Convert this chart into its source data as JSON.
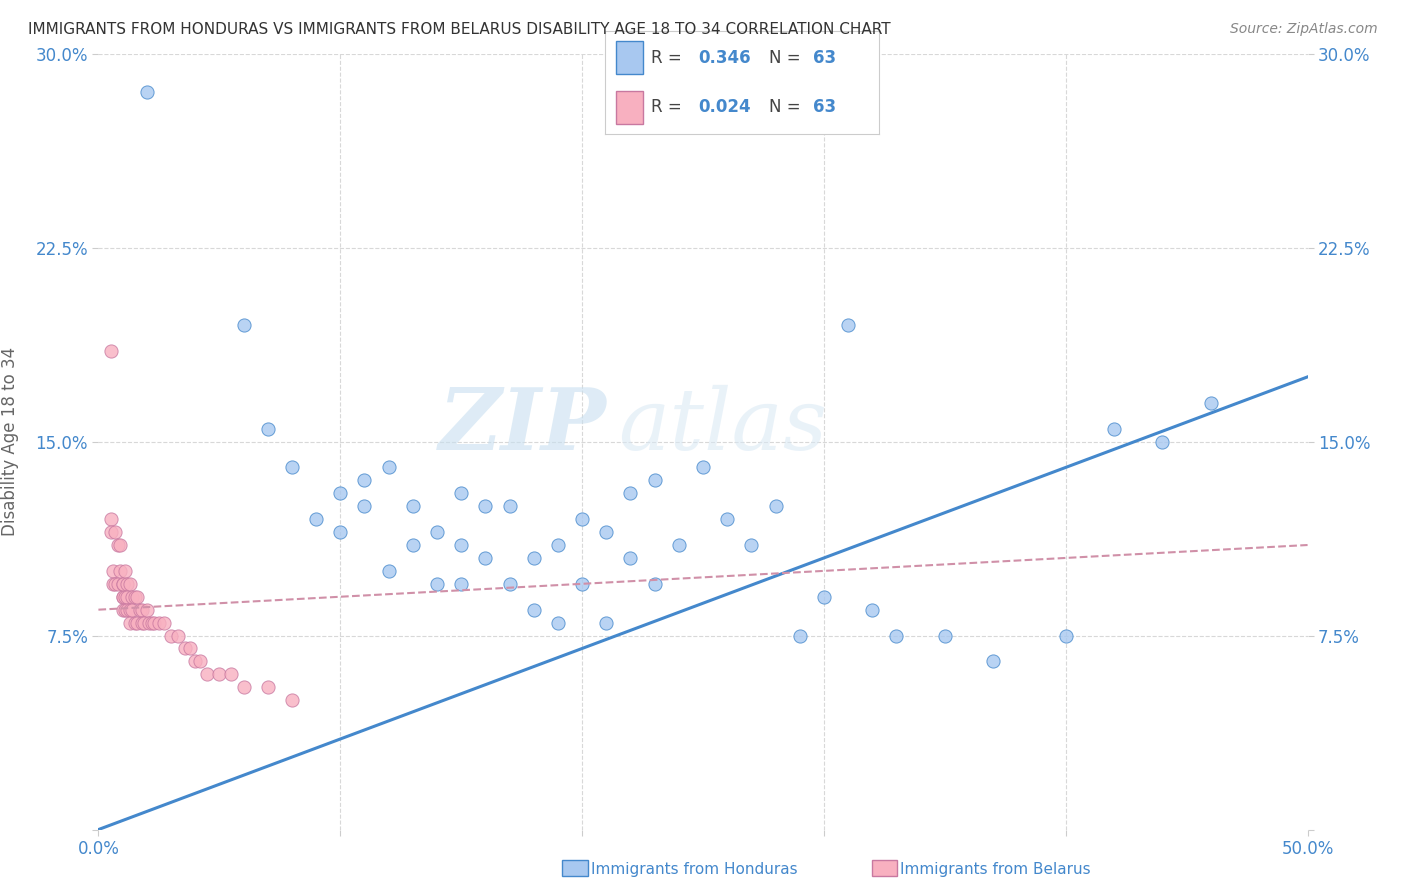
{
  "title": "IMMIGRANTS FROM HONDURAS VS IMMIGRANTS FROM BELARUS DISABILITY AGE 18 TO 34 CORRELATION CHART",
  "source": "Source: ZipAtlas.com",
  "ylabel": "Disability Age 18 to 34",
  "xlim": [
    0.0,
    0.5
  ],
  "ylim": [
    0.0,
    0.3
  ],
  "xticks": [
    0.0,
    0.1,
    0.2,
    0.3,
    0.4,
    0.5
  ],
  "yticks": [
    0.0,
    0.075,
    0.15,
    0.225,
    0.3
  ],
  "ytick_labels": [
    "",
    "7.5%",
    "15.0%",
    "22.5%",
    "30.0%"
  ],
  "color_honduras": "#a8c8f0",
  "color_belarus": "#f8b0c0",
  "color_line_honduras": "#4488cc",
  "color_line_belarus": "#d090a8",
  "color_text_blue": "#4488cc",
  "watermark_zip": "ZIP",
  "watermark_atlas": "atlas",
  "honduras_x": [
    0.02,
    0.06,
    0.07,
    0.08,
    0.09,
    0.1,
    0.1,
    0.11,
    0.11,
    0.12,
    0.12,
    0.13,
    0.13,
    0.14,
    0.14,
    0.15,
    0.15,
    0.15,
    0.16,
    0.16,
    0.17,
    0.17,
    0.18,
    0.18,
    0.19,
    0.19,
    0.2,
    0.2,
    0.21,
    0.21,
    0.22,
    0.22,
    0.23,
    0.23,
    0.24,
    0.25,
    0.26,
    0.27,
    0.28,
    0.29,
    0.3,
    0.31,
    0.32,
    0.33,
    0.35,
    0.37,
    0.4,
    0.42,
    0.44,
    0.46
  ],
  "honduras_y": [
    0.285,
    0.195,
    0.155,
    0.14,
    0.12,
    0.13,
    0.115,
    0.125,
    0.135,
    0.14,
    0.1,
    0.125,
    0.11,
    0.115,
    0.095,
    0.13,
    0.11,
    0.095,
    0.125,
    0.105,
    0.125,
    0.095,
    0.105,
    0.085,
    0.11,
    0.08,
    0.12,
    0.095,
    0.115,
    0.08,
    0.105,
    0.13,
    0.095,
    0.135,
    0.11,
    0.14,
    0.12,
    0.11,
    0.125,
    0.075,
    0.09,
    0.195,
    0.085,
    0.075,
    0.075,
    0.065,
    0.075,
    0.155,
    0.15,
    0.165
  ],
  "belarus_x": [
    0.005,
    0.005,
    0.005,
    0.006,
    0.006,
    0.007,
    0.007,
    0.008,
    0.008,
    0.009,
    0.009,
    0.01,
    0.01,
    0.01,
    0.01,
    0.01,
    0.011,
    0.011,
    0.011,
    0.012,
    0.012,
    0.012,
    0.013,
    0.013,
    0.013,
    0.014,
    0.014,
    0.015,
    0.015,
    0.016,
    0.016,
    0.017,
    0.018,
    0.018,
    0.019,
    0.02,
    0.021,
    0.022,
    0.023,
    0.025,
    0.027,
    0.03,
    0.033,
    0.036,
    0.038,
    0.04,
    0.042,
    0.045,
    0.05,
    0.055,
    0.06,
    0.07,
    0.08
  ],
  "belarus_y": [
    0.185,
    0.12,
    0.115,
    0.1,
    0.095,
    0.115,
    0.095,
    0.11,
    0.095,
    0.11,
    0.1,
    0.095,
    0.09,
    0.085,
    0.09,
    0.095,
    0.1,
    0.09,
    0.085,
    0.095,
    0.09,
    0.085,
    0.095,
    0.085,
    0.08,
    0.09,
    0.085,
    0.09,
    0.08,
    0.09,
    0.08,
    0.085,
    0.085,
    0.08,
    0.08,
    0.085,
    0.08,
    0.08,
    0.08,
    0.08,
    0.08,
    0.075,
    0.075,
    0.07,
    0.07,
    0.065,
    0.065,
    0.06,
    0.06,
    0.06,
    0.055,
    0.055,
    0.05
  ],
  "line_honduras_x0": 0.0,
  "line_honduras_y0": 0.0,
  "line_honduras_x1": 0.5,
  "line_honduras_y1": 0.175,
  "line_belarus_x0": 0.0,
  "line_belarus_y0": 0.085,
  "line_belarus_x1": 0.5,
  "line_belarus_y1": 0.11
}
